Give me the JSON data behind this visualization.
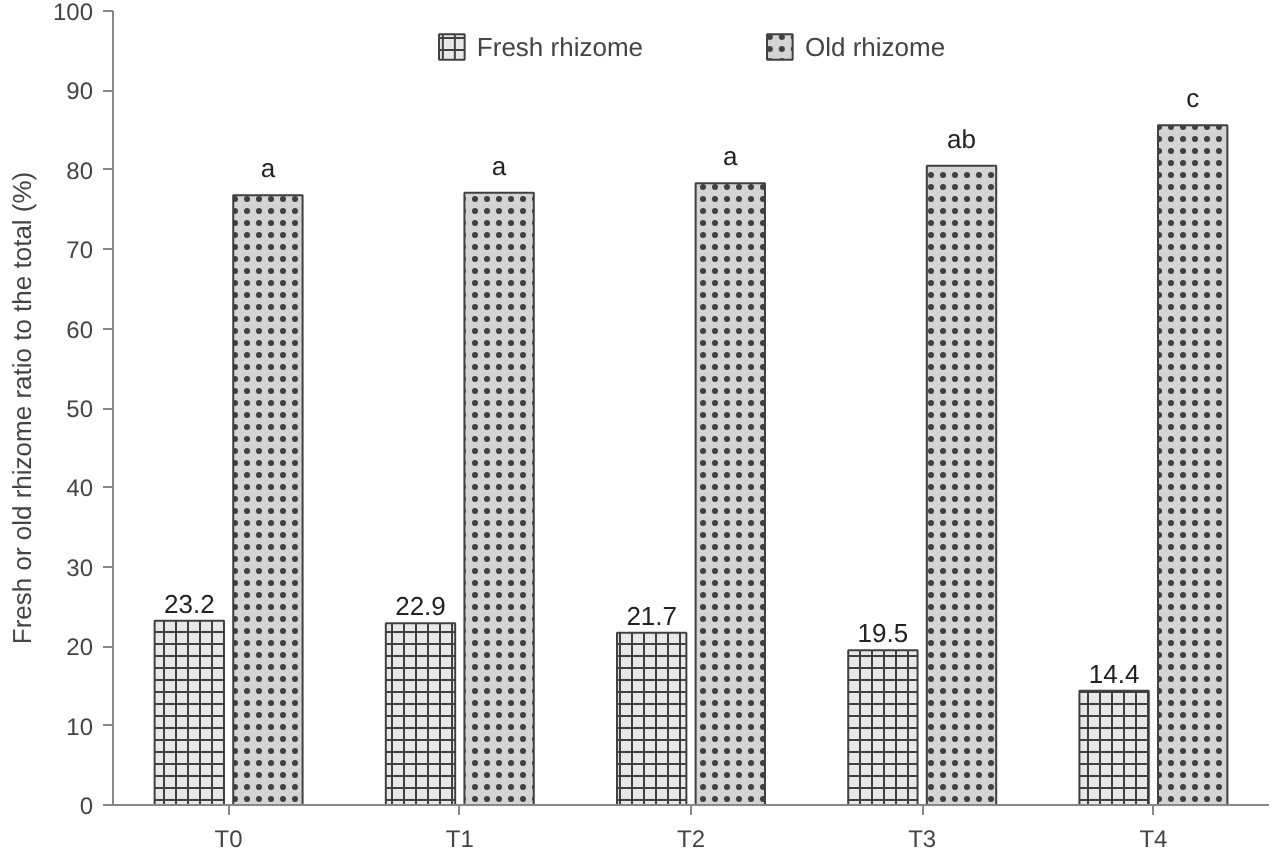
{
  "chart_data": {
    "type": "bar",
    "ylabel": "Fresh or old rhizome ratio to the total (%)",
    "categories": [
      "T0",
      "T1",
      "T2",
      "T3",
      "T4"
    ],
    "ylim": [
      0,
      100
    ],
    "yticks": [
      0,
      10,
      20,
      30,
      40,
      50,
      60,
      70,
      80,
      90,
      100
    ],
    "grid": false,
    "legend": "top",
    "series": [
      {
        "name": "Fresh rhizome",
        "color": "#e8e8e8",
        "values": [
          23.2,
          22.9,
          21.7,
          19.5,
          14.4
        ],
        "value_labels": [
          "23.2",
          "22.9",
          "21.7",
          "19.5",
          "14.4"
        ]
      },
      {
        "name": "Old rhizome",
        "color": "#d4d4d4",
        "values": [
          76.8,
          77.1,
          78.3,
          80.5,
          85.6
        ]
      }
    ],
    "annotations": [
      {
        "text": "a",
        "x": "T0",
        "y": 76.8
      },
      {
        "text": "a",
        "x": "T1",
        "y": 77.1
      },
      {
        "text": "a",
        "x": "T2",
        "y": 78.3
      },
      {
        "text": "ab",
        "x": "T3",
        "y": 80.5
      },
      {
        "text": "c",
        "x": "T4",
        "y": 85.6
      }
    ]
  }
}
